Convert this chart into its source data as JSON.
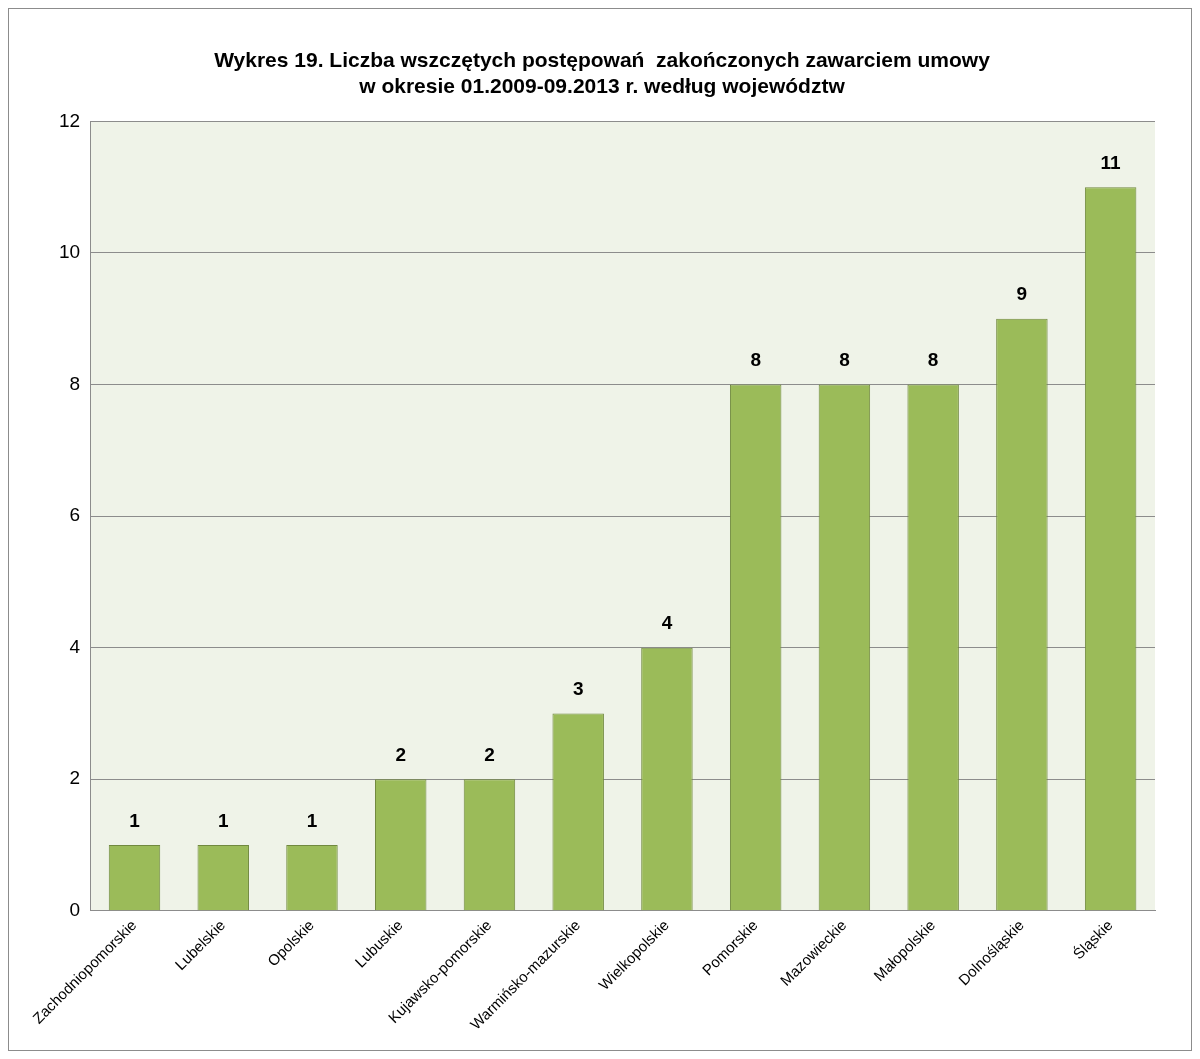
{
  "chart_data": {
    "type": "bar",
    "title": "Wykres 19. Liczba wszczętych postępowań  zakończonych zawarciem umowy\nw okresie 01.2009-09.2013 r. według województw",
    "categories": [
      "Zachodniopomorskie",
      "Lubelskie",
      "Opolskie",
      "Lubuskie",
      "Kujawsko-pomorskie",
      "Warmińsko-mazurskie",
      "Wielkopolskie",
      "Pomorskie",
      "Mazowieckie",
      "Małopolskie",
      "Dolnośląskie",
      "Śląskie"
    ],
    "values": [
      1,
      1,
      1,
      2,
      2,
      3,
      4,
      8,
      8,
      8,
      9,
      11
    ],
    "color": "#9bbb59",
    "ylim": [
      0,
      12
    ],
    "yticks": [
      0,
      2,
      4,
      6,
      8,
      10,
      12
    ],
    "grid": "y",
    "data_labels": true
  }
}
